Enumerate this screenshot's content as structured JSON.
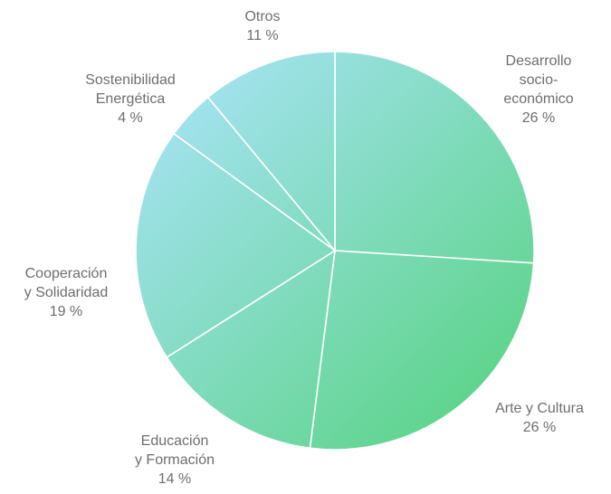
{
  "chart_data": {
    "type": "pie",
    "start_angle_deg": 0,
    "direction": "clockwise",
    "slices": [
      {
        "label_lines": [
          "Desarrollo",
          "socio-",
          "económico"
        ],
        "value": 26,
        "value_label": "26 %"
      },
      {
        "label_lines": [
          "Arte y Cultura"
        ],
        "value": 26,
        "value_label": "26 %"
      },
      {
        "label_lines": [
          "Educación",
          "y Formación"
        ],
        "value": 14,
        "value_label": "14 %"
      },
      {
        "label_lines": [
          "Cooperación",
          "y Solidaridad"
        ],
        "value": 19,
        "value_label": "19 %"
      },
      {
        "label_lines": [
          "Sostenibilidad",
          "Energética"
        ],
        "value": 4,
        "value_label": "4 %"
      },
      {
        "label_lines": [
          "Otros"
        ],
        "value": 11,
        "value_label": "11 %"
      }
    ],
    "gradient_colors": [
      "#a7e3f5",
      "#59d384"
    ],
    "legend": "none"
  }
}
